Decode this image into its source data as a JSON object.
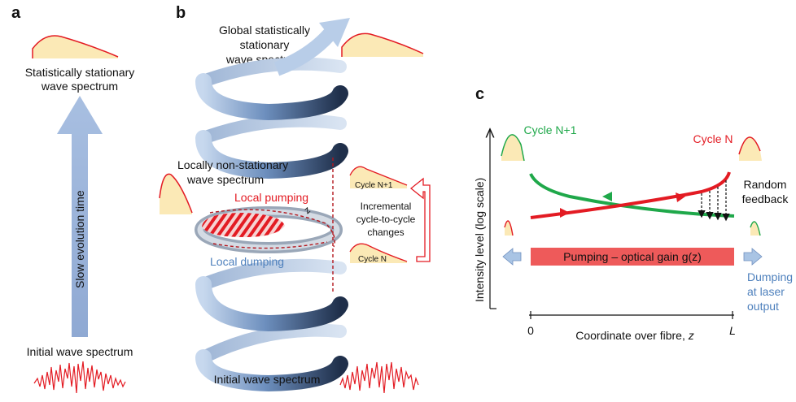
{
  "panel_a": {
    "letter": "a",
    "top_line1": "Statistically stationary",
    "top_line2": "wave spectrum",
    "arrow_label": "Slow evolution time",
    "bottom_label": "Initial wave spectrum"
  },
  "panel_b": {
    "letter": "b",
    "global_line1": "Global statistically",
    "global_line2": "stationary",
    "global_line3": "wave spectrum",
    "local_line1": "Locally non-stationary",
    "local_line2": "wave spectrum",
    "local_pumping": "Local pumping",
    "local_dumping": "Local dumping",
    "z_label": "z",
    "cycle_n1": "Cycle N+1",
    "cycle_n": "Cycle N",
    "incr_line1": "Incremental",
    "incr_line2": "cycle-to-cycle",
    "incr_line3": "changes",
    "initial": "Initial wave spectrum"
  },
  "panel_c": {
    "letter": "c",
    "cycle_n1": "Cycle N+1",
    "cycle_n": "Cycle N",
    "random1": "Random",
    "random2": "feedback",
    "pump_label": "Pumping – optical gain g(z)",
    "dump1": "Dumping",
    "dump2": "at laser",
    "dump3": "output",
    "ylabel": "Intensity level (log scale)",
    "xlabel": "Coordinate over fibre, ",
    "xlabel_var": "z",
    "tick0": "0",
    "tickL": "L"
  },
  "colors": {
    "red": "#e31b23",
    "green": "#1fa84a",
    "blue_text": "#4f81bd",
    "helix_light": "#b8cde8",
    "helix_dark": "#2c3e5c",
    "spectrum_fill": "#fbe9b6",
    "pump_bar": "#ee5a5a",
    "dump_arrow": "#a9c4e4"
  }
}
